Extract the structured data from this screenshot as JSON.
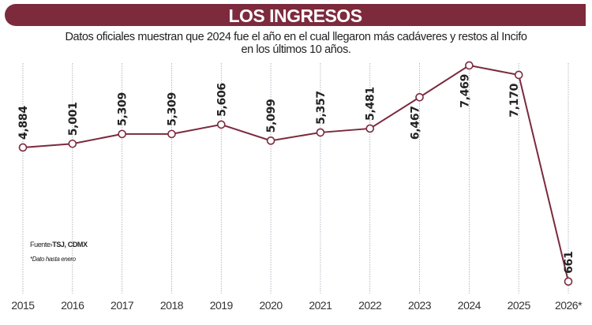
{
  "header": {
    "title": "LOS INGRESOS",
    "subtitle_line1": "Datos oficiales muestran que 2024 fue el año en el cual llegaron más cadáveres y restos al Incifo",
    "subtitle_line2": "en los últimos 10 años."
  },
  "footer": {
    "source_label": "Fuente›",
    "source_value": "TSJ, CDMX",
    "note": "*Dato hasta enero"
  },
  "colors": {
    "accent": "#7d2a3d",
    "line": "#7b2a3e",
    "grid": "#9aa6b2"
  },
  "chart_data": {
    "type": "line",
    "title": "LOS INGRESOS",
    "categories": [
      "2015",
      "2016",
      "2017",
      "2018",
      "2019",
      "2020",
      "2021",
      "2022",
      "2023",
      "2024",
      "2025",
      "2026*"
    ],
    "values": [
      4884,
      5001,
      5309,
      5309,
      5606,
      5099,
      5357,
      5481,
      6467,
      7469,
      7170,
      661
    ],
    "data_labels": [
      "4,884",
      "5,001",
      "5,309",
      "5,309",
      "5,606",
      "5,099",
      "5,357",
      "5,481",
      "6,467",
      "7,469",
      "7,170",
      "661"
    ],
    "grid": "vertical dotted",
    "legend": "none",
    "xlabel": "",
    "ylabel": ""
  }
}
